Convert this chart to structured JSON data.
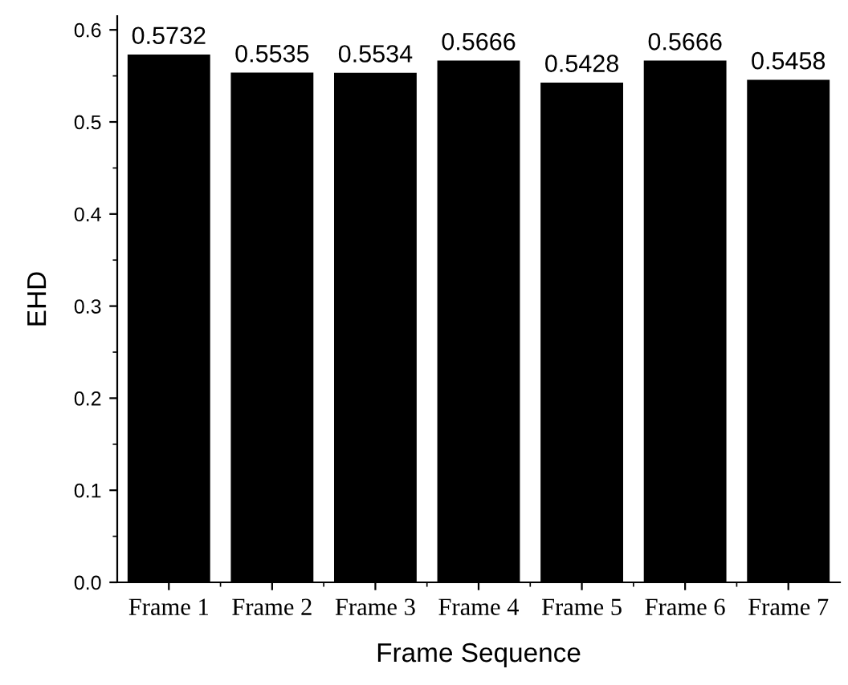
{
  "chart_data": {
    "type": "bar",
    "xlabel": "Frame Sequence",
    "ylabel": "EHD",
    "categories": [
      "Frame 1",
      "Frame 2",
      "Frame 3",
      "Frame 4",
      "Frame 5",
      "Frame 6",
      "Frame 7"
    ],
    "values": [
      0.5732,
      0.5535,
      0.5534,
      0.5666,
      0.5428,
      0.5666,
      0.5458
    ],
    "color": "#000000",
    "data_labels": true,
    "ylim": [
      0,
      0.615
    ],
    "yticks": [
      {
        "value": 0,
        "label": "0.0"
      },
      0.1,
      0.2,
      0.3,
      0.4,
      0.5,
      0.6
    ],
    "grid": false,
    "legend": false
  }
}
